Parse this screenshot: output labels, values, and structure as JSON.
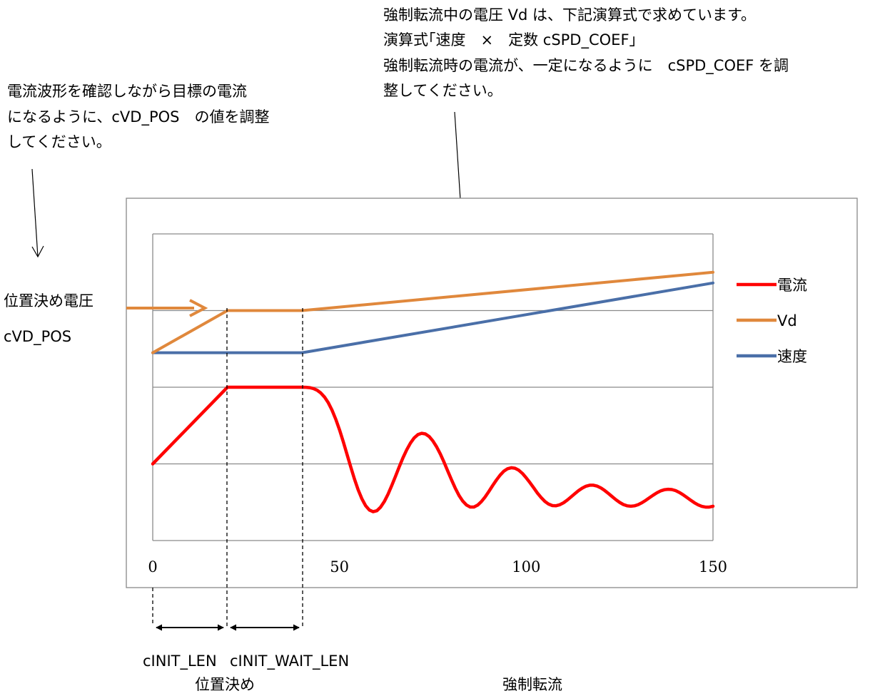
{
  "annotations": {
    "vd_note": [
      "強制転流中の電圧 Vd は、下記演算式で求めています。",
      "演算式｢速度　×　定数 cSPD_COEF｣",
      "強制転流時の電流が、一定になるように　cSPD_COEF を調",
      "整してください。"
    ],
    "current_note": [
      "電流波形を確認しながら目標の電流",
      "になるように、cVD_POS　の値を調整",
      "してください。"
    ],
    "pos_voltage_label": [
      "位置決め電圧",
      "cVD_POS"
    ],
    "init_len_label": "cINIT_LEN",
    "init_wait_len_label": "cINIT_WAIT_LEN",
    "phase_positioning": "位置決め",
    "phase_forced": "強制転流"
  },
  "chart_data": {
    "type": "line",
    "title": "",
    "xlabel": "",
    "ylabel": "",
    "xlim": [
      0,
      150
    ],
    "xticks": [
      "0",
      "50",
      "100",
      "150"
    ],
    "ylim": [
      0,
      4
    ],
    "grid": "horizontal",
    "legend_position": "right",
    "series": [
      {
        "name": "電流",
        "color": "#ff0000",
        "x": [
          0,
          20,
          40,
          41,
          42,
          43,
          44,
          45,
          46,
          47,
          48,
          49,
          50,
          51,
          52,
          53,
          54,
          55,
          56,
          57,
          58,
          59,
          60,
          61,
          62,
          63,
          64,
          65,
          66,
          67,
          68,
          69,
          70,
          71,
          72,
          73,
          74,
          75,
          76,
          77,
          78,
          79,
          80,
          81,
          82,
          83,
          84,
          85,
          86,
          87,
          88,
          89,
          90,
          91,
          92,
          93,
          94,
          95,
          96,
          97,
          98,
          99,
          100,
          101,
          102,
          103,
          104,
          105,
          106,
          107,
          108,
          109,
          110,
          111,
          112,
          113,
          114,
          115,
          116,
          117,
          118,
          119,
          120,
          121,
          122,
          123,
          124,
          125,
          126,
          127,
          128,
          129,
          130,
          131,
          132,
          133,
          134,
          135,
          136,
          137,
          138,
          139,
          140,
          141,
          142,
          143,
          144,
          145,
          146,
          147,
          148,
          149,
          150
        ],
        "values": [
          1,
          2,
          2,
          1.999,
          1.994,
          1.983,
          1.961,
          1.925,
          1.872,
          1.797,
          1.701,
          1.583,
          1.445,
          1.291,
          1.127,
          0.962,
          0.804,
          0.662,
          0.543,
          0.454,
          0.398,
          0.376,
          0.389,
          0.435,
          0.509,
          0.605,
          0.717,
          0.839,
          0.962,
          1.079,
          1.184,
          1.272,
          1.339,
          1.382,
          1.399,
          1.391,
          1.357,
          1.3,
          1.223,
          1.128,
          1.021,
          0.906,
          0.791,
          0.683,
          0.589,
          0.514,
          0.463,
          0.437,
          0.437,
          0.462,
          0.508,
          0.569,
          0.641,
          0.716,
          0.789,
          0.853,
          0.904,
          0.937,
          0.95,
          0.943,
          0.917,
          0.874,
          0.818,
          0.754,
          0.687,
          0.62,
          0.56,
          0.51,
          0.475,
          0.456,
          0.454,
          0.467,
          0.493,
          0.528,
          0.569,
          0.611,
          0.651,
          0.684,
          0.709,
          0.722,
          0.722,
          0.71,
          0.686,
          0.653,
          0.614,
          0.573,
          0.533,
          0.498,
          0.47,
          0.453,
          0.447,
          0.453,
          0.469,
          0.494,
          0.525,
          0.559,
          0.593,
          0.623,
          0.647,
          0.663,
          0.669,
          0.665,
          0.651,
          0.627,
          0.597,
          0.562,
          0.527,
          0.494,
          0.466,
          0.446,
          0.436,
          0.436,
          0.447
        ],
        "note": "oscillating waveform; normalized display level, 2 = upper gridline"
      },
      {
        "name": "Vd",
        "color": "#e0883c",
        "x": [
          0,
          20,
          40,
          150
        ],
        "values": [
          2.45,
          3.0,
          3.0,
          3.5
        ]
      },
      {
        "name": "速度",
        "color": "#4a6fa8",
        "x": [
          0,
          20,
          40,
          150
        ],
        "values": [
          2.45,
          2.45,
          2.45,
          3.36
        ]
      }
    ]
  }
}
